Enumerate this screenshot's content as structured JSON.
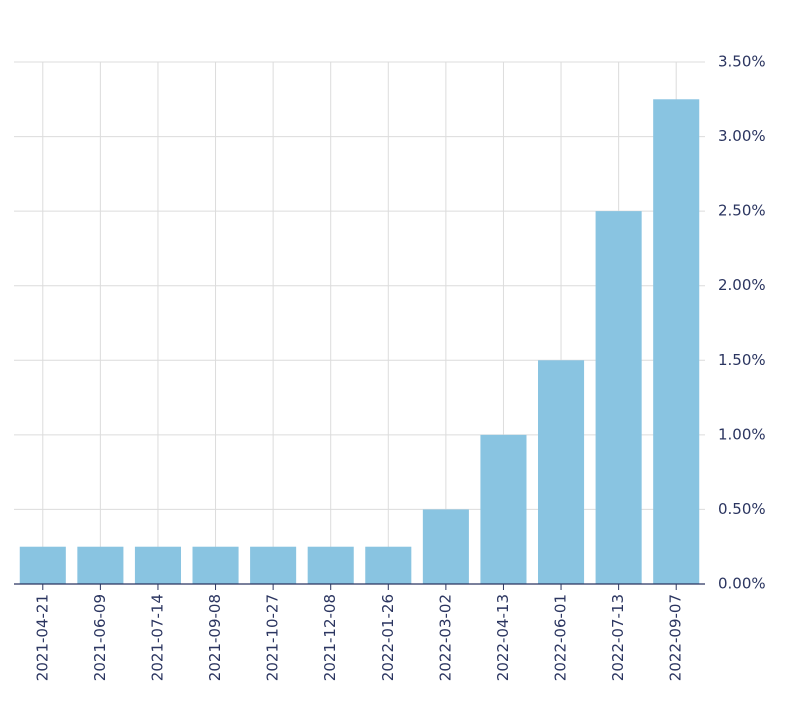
{
  "chart_data": {
    "type": "bar",
    "categories": [
      "2021-04-21",
      "2021-06-09",
      "2021-07-14",
      "2021-09-08",
      "2021-10-27",
      "2021-12-08",
      "2022-01-26",
      "2022-03-02",
      "2022-04-13",
      "2022-06-01",
      "2022-07-13",
      "2022-09-07"
    ],
    "values": [
      0.25,
      0.25,
      0.25,
      0.25,
      0.25,
      0.25,
      0.25,
      0.5,
      1.0,
      1.5,
      2.5,
      3.25
    ],
    "color": "#89c4e1",
    "ylim": [
      0,
      3.5
    ],
    "yticks": [
      {
        "value": 0,
        "label": "0.00%"
      },
      {
        "value": 0.5,
        "label": "0.50%"
      },
      {
        "value": 1.0,
        "label": "1.00%"
      },
      {
        "value": 1.5,
        "label": "1.50%"
      },
      {
        "value": 2.0,
        "label": "2.00%"
      },
      {
        "value": 2.5,
        "label": "2.50%"
      },
      {
        "value": 3.0,
        "label": "3.00%"
      },
      {
        "value": 3.5,
        "label": "3.50%"
      }
    ],
    "grid": true
  }
}
